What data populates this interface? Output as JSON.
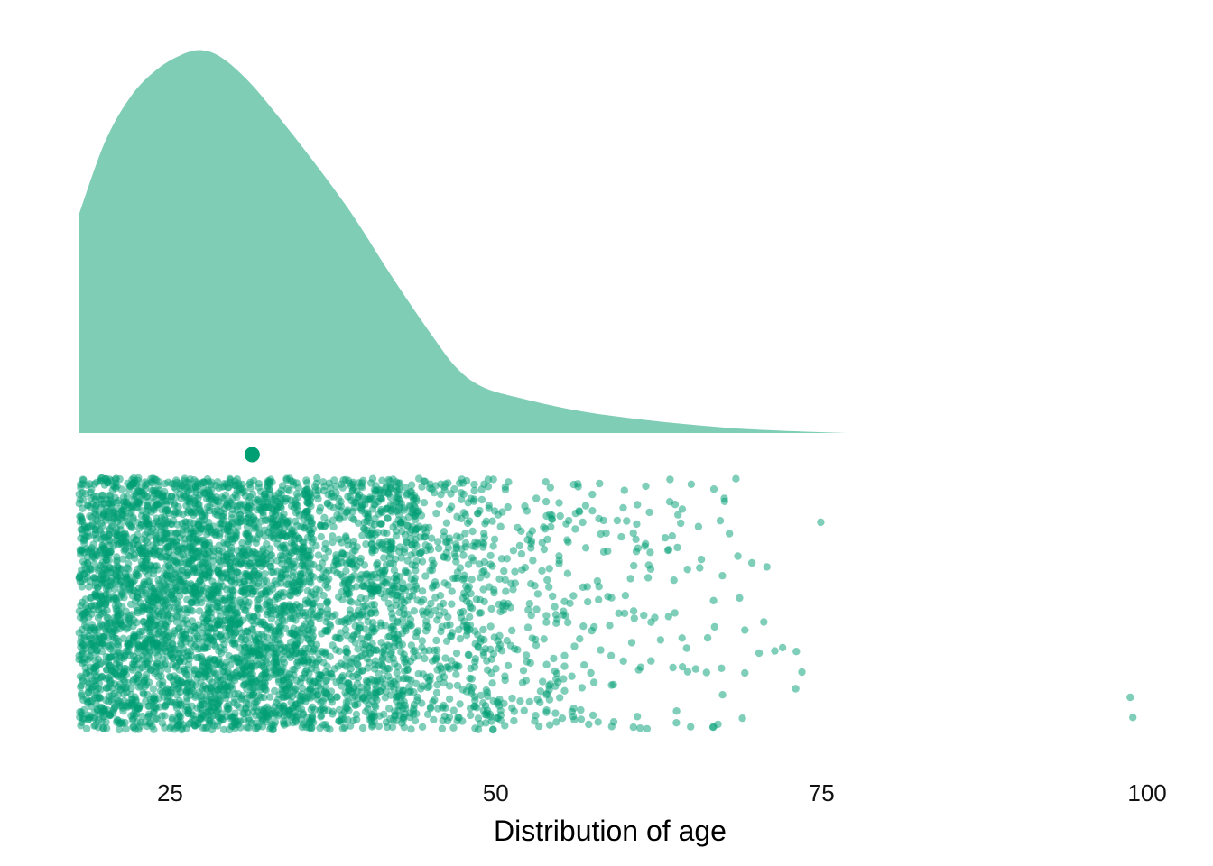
{
  "chart_data": {
    "type": "raincloud",
    "xlabel": "Distribution of age",
    "x_ticks": [
      25,
      50,
      75,
      100
    ],
    "xlim": [
      18,
      99
    ],
    "grid": false,
    "legend": "none",
    "colors": {
      "density_fill": "#80cdb6",
      "points": "#009e73",
      "mean_point": "#009e73"
    },
    "density": {
      "x": [
        18,
        20,
        22,
        24,
        26,
        27.5,
        29,
        31,
        33,
        36,
        39,
        42,
        45,
        47,
        49,
        52,
        56,
        60,
        64,
        68,
        72,
        77
      ],
      "y": [
        0.57,
        0.76,
        0.88,
        0.95,
        0.99,
        1.0,
        0.98,
        0.92,
        0.84,
        0.71,
        0.57,
        0.41,
        0.26,
        0.17,
        0.12,
        0.09,
        0.06,
        0.04,
        0.025,
        0.013,
        0.006,
        0.0
      ]
    },
    "mean_age": 31.3,
    "points": {
      "n": 5200,
      "min": 18,
      "max": 99,
      "bins": [
        {
          "x0": 18,
          "x1": 28,
          "count": 1900
        },
        {
          "x0": 28,
          "x1": 36,
          "count": 1450
        },
        {
          "x0": 36,
          "x1": 44,
          "count": 900
        },
        {
          "x0": 44,
          "x1": 50,
          "count": 350
        },
        {
          "x0": 50,
          "x1": 56,
          "count": 170
        },
        {
          "x0": 56,
          "x1": 62,
          "count": 85
        },
        {
          "x0": 62,
          "x1": 68,
          "count": 45
        },
        {
          "x0": 68,
          "x1": 75,
          "count": 16
        }
      ],
      "outliers": [
        98.7,
        98.9
      ]
    }
  }
}
